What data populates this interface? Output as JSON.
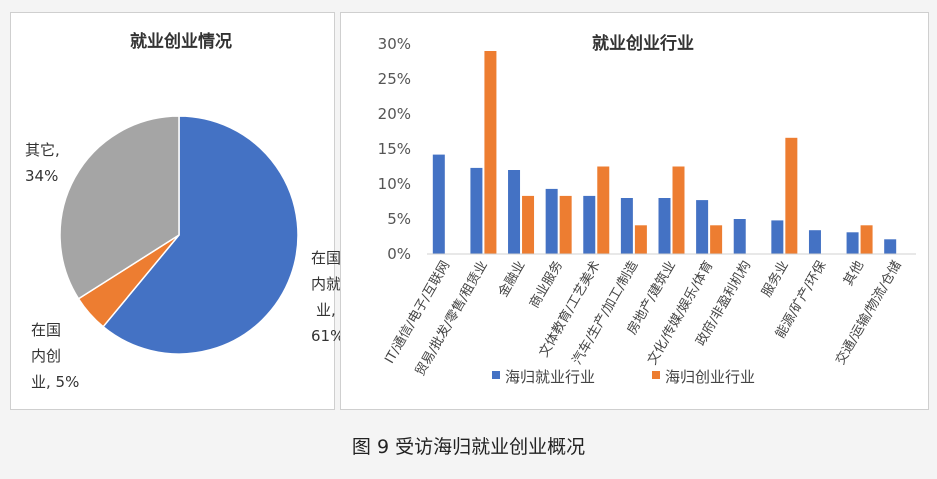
{
  "colors": {
    "blue": "#4472c4",
    "orange": "#ed7d31",
    "gray": "#a5a5a5"
  },
  "caption": "图 9  受访海归就业创业概况",
  "chart_data": [
    {
      "type": "pie",
      "title": "就业创业情况",
      "slices": [
        {
          "label_lines": [
            "在国",
            "内就",
            "业,",
            "61%"
          ],
          "value": 61,
          "color": "#4472c4"
        },
        {
          "label_lines": [
            "在国",
            "内创",
            "业, 5%"
          ],
          "value": 5,
          "color": "#ed7d31"
        },
        {
          "label_lines": [
            "其它,",
            "34%"
          ],
          "value": 34,
          "color": "#a5a5a5"
        }
      ]
    },
    {
      "type": "bar",
      "title": "就业创业行业",
      "ylim": [
        0,
        30
      ],
      "yticks": [
        "0%",
        "5%",
        "10%",
        "15%",
        "20%",
        "25%",
        "30%"
      ],
      "categories": [
        "IT/通信/电子/互联网",
        "贸易/批发/零售/租赁业",
        "金融业",
        "商业服务",
        "文体教育/工艺美术",
        "汽车/生产/加工/制造",
        "房地产/建筑业",
        "文化/传媒/娱乐/体育",
        "政府/非盈利机构",
        "服务业",
        "能源/矿产/环保",
        "其他",
        "交通/运输/物流/仓储"
      ],
      "series": [
        {
          "name": "海归就业行业",
          "color": "#4472c4",
          "values": [
            14.2,
            12.3,
            12.0,
            9.3,
            8.3,
            8.0,
            8.0,
            7.7,
            5.0,
            4.8,
            3.4,
            3.1,
            2.1
          ]
        },
        {
          "name": "海归创业行业",
          "color": "#ed7d31",
          "values": [
            0,
            29.0,
            8.3,
            8.3,
            12.5,
            4.1,
            12.5,
            4.1,
            0,
            16.6,
            0,
            4.1,
            0
          ]
        }
      ]
    }
  ]
}
